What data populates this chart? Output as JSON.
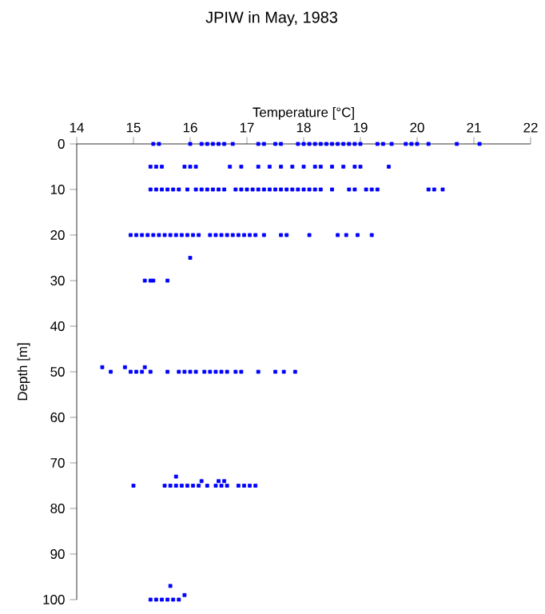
{
  "chart_data": {
    "type": "scatter",
    "title": "JPIW in May, 1983",
    "xlabel": "Temperature [°C]",
    "ylabel": "Depth [m]",
    "color": "#0000ff",
    "marker": "square",
    "xlim": [
      14,
      22
    ],
    "ylim": [
      100,
      0
    ],
    "xticks": [
      14,
      15,
      16,
      17,
      18,
      19,
      20,
      21,
      22
    ],
    "yticks": [
      0,
      10,
      20,
      30,
      40,
      50,
      60,
      70,
      80,
      90,
      100
    ],
    "x": [
      15.35,
      15.45,
      16.0,
      16.2,
      16.3,
      16.4,
      16.5,
      16.6,
      16.75,
      17.2,
      17.3,
      17.5,
      17.6,
      17.9,
      18.0,
      18.1,
      18.2,
      18.3,
      18.4,
      18.5,
      18.6,
      18.7,
      18.8,
      18.9,
      19.0,
      19.3,
      19.4,
      19.55,
      19.8,
      19.9,
      20.0,
      20.2,
      20.7,
      21.1,
      15.3,
      15.4,
      15.5,
      15.9,
      16.0,
      16.1,
      16.7,
      16.9,
      17.2,
      17.4,
      17.6,
      17.8,
      18.0,
      18.2,
      18.3,
      18.5,
      18.7,
      18.9,
      19.0,
      19.5,
      15.3,
      15.4,
      15.5,
      15.6,
      15.7,
      15.8,
      15.95,
      16.1,
      16.2,
      16.3,
      16.4,
      16.5,
      16.6,
      16.8,
      16.9,
      17.0,
      17.1,
      17.2,
      17.3,
      17.4,
      17.5,
      17.6,
      17.7,
      17.8,
      17.9,
      18.0,
      18.1,
      18.2,
      18.3,
      18.5,
      18.8,
      18.9,
      19.1,
      19.2,
      19.3,
      20.2,
      20.3,
      20.45,
      14.95,
      15.05,
      15.15,
      15.25,
      15.35,
      15.45,
      15.55,
      15.65,
      15.75,
      15.85,
      15.95,
      16.05,
      16.15,
      16.35,
      16.45,
      16.55,
      16.65,
      16.75,
      16.85,
      16.95,
      17.05,
      17.15,
      17.3,
      17.6,
      17.7,
      18.1,
      18.6,
      18.75,
      18.95,
      19.2,
      16.0,
      15.2,
      15.3,
      15.35,
      15.6,
      14.45,
      14.6,
      14.85,
      14.95,
      15.05,
      15.15,
      15.2,
      15.3,
      15.6,
      15.8,
      15.9,
      16.0,
      16.1,
      16.25,
      16.35,
      16.45,
      16.55,
      16.65,
      16.8,
      16.9,
      17.2,
      17.5,
      17.65,
      17.85,
      15.0,
      15.55,
      15.65,
      15.75,
      15.85,
      15.95,
      16.05,
      16.15,
      16.3,
      16.45,
      16.55,
      16.65,
      16.85,
      16.95,
      17.05,
      17.15,
      15.75,
      16.2,
      16.5,
      16.6,
      15.3,
      15.4,
      15.5,
      15.6,
      15.7,
      15.8,
      15.65,
      15.9
    ],
    "values": [
      0,
      0,
      0,
      0,
      0,
      0,
      0,
      0,
      0,
      0,
      0,
      0,
      0,
      0,
      0,
      0,
      0,
      0,
      0,
      0,
      0,
      0,
      0,
      0,
      0,
      0,
      0,
      0,
      0,
      0,
      0,
      0,
      0,
      0,
      5,
      5,
      5,
      5,
      5,
      5,
      5,
      5,
      5,
      5,
      5,
      5,
      5,
      5,
      5,
      5,
      5,
      5,
      5,
      5,
      10,
      10,
      10,
      10,
      10,
      10,
      10,
      10,
      10,
      10,
      10,
      10,
      10,
      10,
      10,
      10,
      10,
      10,
      10,
      10,
      10,
      10,
      10,
      10,
      10,
      10,
      10,
      10,
      10,
      10,
      10,
      10,
      10,
      10,
      10,
      10,
      10,
      10,
      20,
      20,
      20,
      20,
      20,
      20,
      20,
      20,
      20,
      20,
      20,
      20,
      20,
      20,
      20,
      20,
      20,
      20,
      20,
      20,
      20,
      20,
      20,
      20,
      20,
      20,
      20,
      20,
      20,
      20,
      25,
      30,
      30,
      30,
      30,
      49,
      50,
      49,
      50,
      50,
      50,
      49,
      50,
      50,
      50,
      50,
      50,
      50,
      50,
      50,
      50,
      50,
      50,
      50,
      50,
      50,
      50,
      50,
      50,
      75,
      75,
      75,
      75,
      75,
      75,
      75,
      75,
      75,
      75,
      75,
      75,
      75,
      75,
      75,
      75,
      73,
      74,
      74,
      74,
      100,
      100,
      100,
      100,
      100,
      100,
      97,
      99
    ]
  }
}
